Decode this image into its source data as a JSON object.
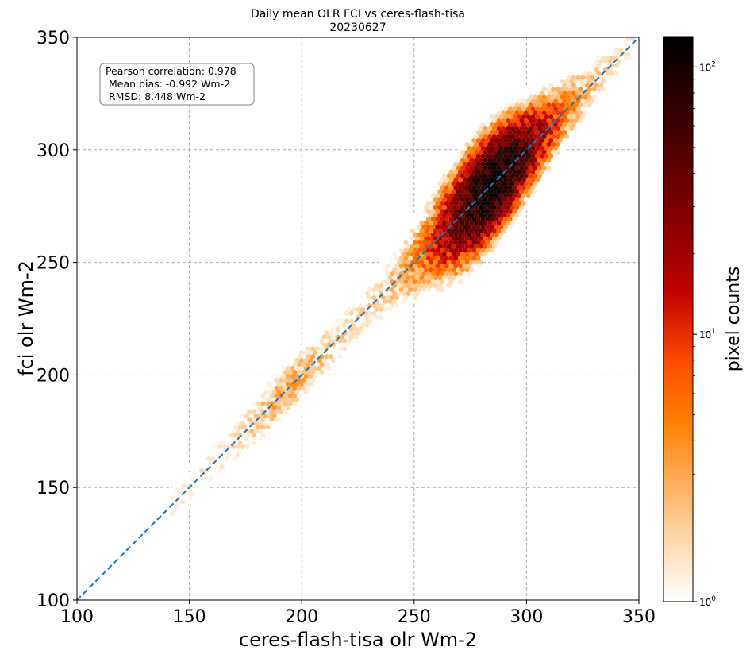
{
  "chart_data": {
    "type": "hexbin-scatter",
    "title": [
      "Daily mean OLR FCI vs ceres-flash-tisa",
      "20230627"
    ],
    "xlabel": "ceres-flash-tisa olr Wm-2",
    "ylabel": "fci olr Wm-2",
    "xlim": [
      100,
      350
    ],
    "ylim": [
      100,
      350
    ],
    "xticks": [
      100,
      150,
      200,
      250,
      300,
      350
    ],
    "yticks": [
      100,
      150,
      200,
      250,
      300,
      350
    ],
    "grid": true,
    "reference_line": {
      "style": "dashed",
      "color": "#1f77b4",
      "from": [
        100,
        100
      ],
      "to": [
        350,
        350
      ]
    },
    "stats": [
      "Pearson correlation: 0.978",
      "Mean bias: -0.992 Wm-2",
      "RMSD: 8.448 Wm-2"
    ],
    "colorbar": {
      "label": "pixel counts",
      "scale": "log",
      "range": [
        1,
        130
      ],
      "ticks": [
        {
          "base": "10",
          "exp": "0"
        },
        {
          "base": "10",
          "exp": "1"
        },
        {
          "base": "10",
          "exp": "2"
        }
      ],
      "colormap": [
        "#ffffff",
        "#ffd09c",
        "#ffaa55",
        "#ff7f00",
        "#ff4e00",
        "#c00000",
        "#7a0000",
        "#3a0000",
        "#000000"
      ]
    },
    "density": {
      "relation": "y ≈ x",
      "x_range": [
        142,
        350
      ],
      "peak_count": 130,
      "peak_location": [
        285,
        285
      ]
    }
  }
}
